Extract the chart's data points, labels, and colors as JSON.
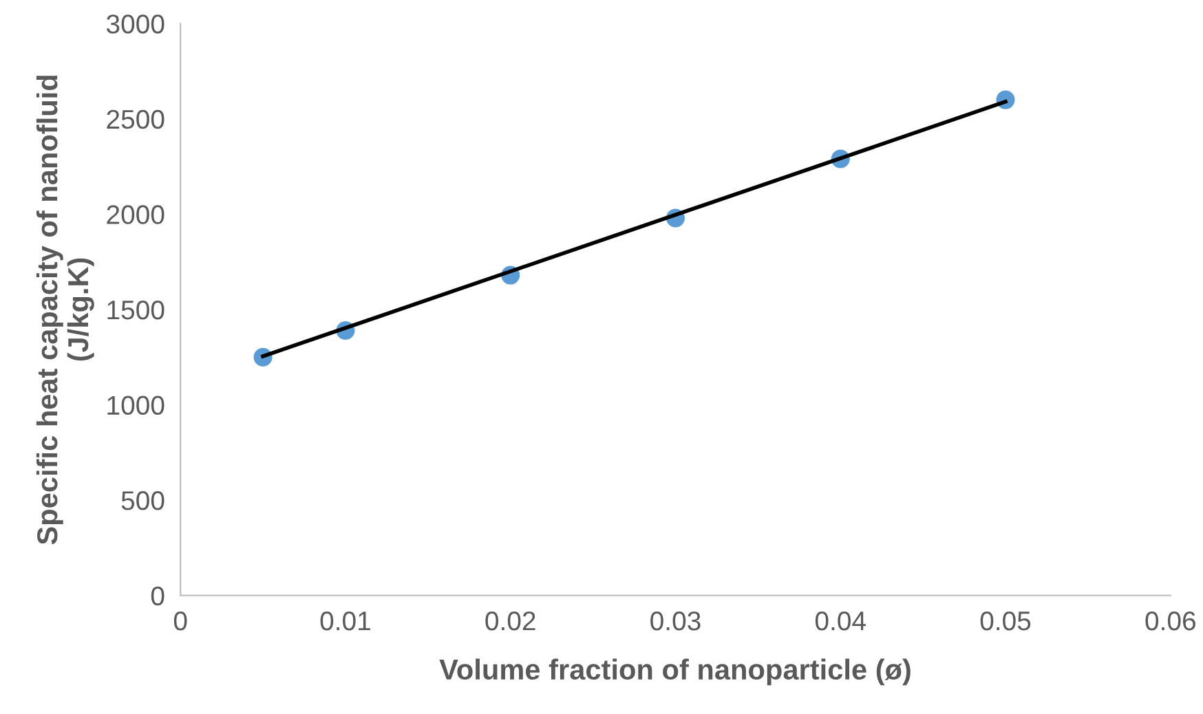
{
  "chart_data": {
    "type": "scatter",
    "xlabel": "Volume fraction of nanoparticle (ø)",
    "ylabel": "Specific heat capacity of nanofluid\n(J/kg.K)",
    "x": [
      0.005,
      0.01,
      0.02,
      0.03,
      0.04,
      0.05
    ],
    "series": [
      {
        "color": "#5b9bd5",
        "values": [
          1250,
          1390,
          1680,
          1980,
          2290,
          2600
        ],
        "marker": "circle"
      },
      {
        "type": "line",
        "color": "#000000",
        "x": [
          0.005,
          0.05
        ],
        "values": [
          1255,
          2590
        ],
        "marker": "none",
        "line_style": "solid"
      }
    ],
    "xlim": [
      0,
      0.06
    ],
    "xticks": [
      0,
      0.01,
      0.02,
      0.03,
      0.04,
      0.05,
      0.06
    ],
    "ylim": [
      0,
      3000
    ],
    "yticks": [
      0,
      500,
      1000,
      1500,
      2000,
      2500,
      3000
    ],
    "grid": false,
    "legend": false
  }
}
